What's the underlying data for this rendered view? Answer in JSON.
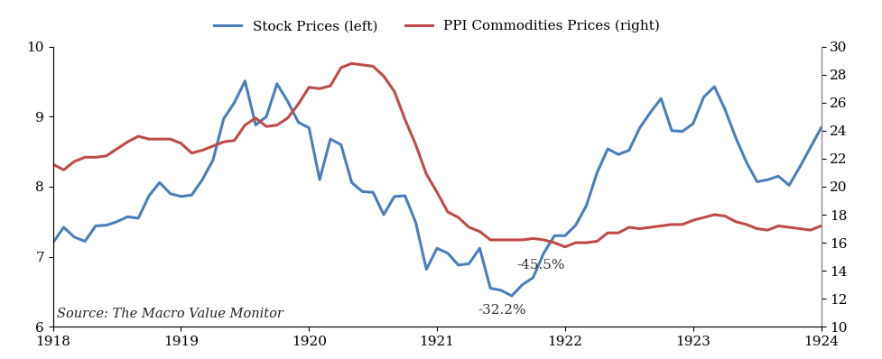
{
  "chart_data": {
    "type": "line",
    "x": [
      1918.0,
      1918.0833,
      1918.1667,
      1918.25,
      1918.3333,
      1918.4167,
      1918.5,
      1918.5833,
      1918.6667,
      1918.75,
      1918.8333,
      1918.9167,
      1919.0,
      1919.0833,
      1919.1667,
      1919.25,
      1919.3333,
      1919.4167,
      1919.5,
      1919.5833,
      1919.6667,
      1919.75,
      1919.8333,
      1919.9167,
      1920.0,
      1920.0833,
      1920.1667,
      1920.25,
      1920.3333,
      1920.4167,
      1920.5,
      1920.5833,
      1920.6667,
      1920.75,
      1920.8333,
      1920.9167,
      1921.0,
      1921.0833,
      1921.1667,
      1921.25,
      1921.3333,
      1921.4167,
      1921.5,
      1921.5833,
      1921.6667,
      1921.75,
      1921.8333,
      1921.9167,
      1922.0,
      1922.0833,
      1922.1667,
      1922.25,
      1922.3333,
      1922.4167,
      1922.5,
      1922.5833,
      1922.6667,
      1922.75,
      1922.8333,
      1922.9167,
      1923.0,
      1923.0833,
      1923.1667,
      1923.25,
      1923.3333,
      1923.4167,
      1923.5,
      1923.5833,
      1923.6667,
      1923.75,
      1923.8333,
      1923.9167,
      1924.0
    ],
    "series": [
      {
        "name": "Stock Prices (left)",
        "color": "#4a7ebb",
        "axis": "y",
        "values": [
          7.2,
          7.42,
          7.28,
          7.22,
          7.44,
          7.45,
          7.5,
          7.57,
          7.55,
          7.87,
          8.06,
          7.9,
          7.86,
          7.88,
          8.1,
          8.38,
          8.97,
          9.2,
          9.51,
          8.88,
          9.0,
          9.47,
          9.22,
          8.92,
          8.84,
          8.1,
          8.68,
          8.6,
          8.06,
          7.93,
          7.92,
          7.6,
          7.86,
          7.87,
          7.49,
          6.82,
          7.12,
          7.05,
          6.88,
          6.9,
          7.12,
          6.55,
          6.52,
          6.44,
          6.6,
          6.7,
          7.05,
          7.3,
          7.3,
          7.45,
          7.73,
          8.2,
          8.54,
          8.46,
          8.52,
          8.84,
          9.06,
          9.26,
          8.8,
          8.79,
          8.9,
          9.28,
          9.43,
          9.1,
          8.7,
          8.35,
          8.07,
          8.1,
          8.15,
          8.02,
          8.28,
          8.56,
          8.84
        ]
      },
      {
        "name": "PPI Commodities Prices (right)",
        "color": "#be4b48",
        "axis": "y2",
        "values": [
          21.6,
          21.2,
          21.8,
          22.1,
          22.1,
          22.2,
          22.7,
          23.2,
          23.6,
          23.4,
          23.4,
          23.4,
          23.1,
          22.4,
          22.6,
          22.9,
          23.2,
          23.3,
          24.4,
          24.9,
          24.3,
          24.4,
          24.9,
          25.9,
          27.1,
          27.0,
          27.2,
          28.5,
          28.8,
          28.7,
          28.6,
          27.9,
          26.8,
          24.8,
          23.0,
          20.9,
          19.6,
          18.2,
          17.8,
          17.1,
          16.8,
          16.2,
          16.2,
          16.2,
          16.2,
          16.3,
          16.2,
          16.0,
          15.7,
          16.0,
          16.0,
          16.1,
          16.7,
          16.7,
          17.1,
          17.0,
          17.1,
          17.2,
          17.3,
          17.3,
          17.6,
          17.8,
          18.0,
          17.9,
          17.5,
          17.3,
          17.0,
          16.9,
          17.2,
          17.1,
          17.0,
          16.9,
          17.2
        ]
      }
    ],
    "xlim": [
      1918,
      1924
    ],
    "xticks": [
      1918,
      1919,
      1920,
      1921,
      1922,
      1923,
      1924
    ],
    "ylim": [
      6,
      10
    ],
    "yticks": [
      6,
      7,
      8,
      9,
      10
    ],
    "y2lim": [
      10,
      30
    ],
    "y2ticks": [
      10,
      12,
      14,
      16,
      18,
      20,
      22,
      24,
      26,
      28,
      30
    ],
    "annotations": [
      "-32.2%",
      "-45.5%"
    ],
    "source": "Source: The Macro Value Monitor",
    "legend": "upper center",
    "grid": false
  }
}
